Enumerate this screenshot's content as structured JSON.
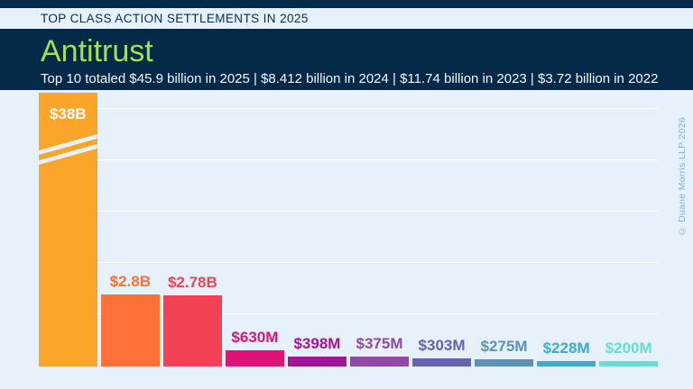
{
  "kicker": "TOP CLASS ACTION SETTLEMENTS IN 2025",
  "header": {
    "title": "Antitrust",
    "subtitle": "Top 10 totaled $45.9 billion in 2025 | $8.412 billion in 2024 | $11.74 billion in 2023 | $3.72 billion in 2022"
  },
  "watermark": "© Duane Morris LLP 2026",
  "colors": {
    "page_bg": "#E7F1FC",
    "navy_band": "#052948",
    "title_green": "#A3E14F",
    "kicker_text": "#0A2B4C",
    "subtitle_text": "#F2F7FD",
    "watermark_text": "#82B2DB",
    "gridline": "#FFFFFF"
  },
  "chart_data": {
    "type": "bar",
    "title": "Antitrust",
    "subtitle": "Top 10 totaled $45.9 billion in 2025 | $8.412 billion in 2024 | $11.74 billion in 2023 | $3.72 billion in 2022",
    "unit": "USD",
    "grid": true,
    "gridline_interval_billions": 2,
    "ylim_billions": [
      0,
      10.6
    ],
    "axis_break_on_first_bar": true,
    "bars": [
      {
        "label": "$38B",
        "value_billions": 38,
        "color": "#FBA62B",
        "broken_axis": true,
        "label_inside": true,
        "label_color": "#FFFFFF"
      },
      {
        "label": "$2.8B",
        "value_billions": 2.8,
        "color": "#FD7136"
      },
      {
        "label": "$2.78B",
        "value_billions": 2.78,
        "color": "#F24055"
      },
      {
        "label": "$630M",
        "value_billions": 0.63,
        "color": "#DE1378"
      },
      {
        "label": "$398M",
        "value_billions": 0.398,
        "color": "#A11597"
      },
      {
        "label": "$375M",
        "value_billions": 0.375,
        "color": "#8F4AA5"
      },
      {
        "label": "$303M",
        "value_billions": 0.303,
        "color": "#6563AE"
      },
      {
        "label": "$275M",
        "value_billions": 0.275,
        "color": "#5A92B8"
      },
      {
        "label": "$228M",
        "value_billions": 0.228,
        "color": "#41A9CD"
      },
      {
        "label": "$200M",
        "value_billions": 0.2,
        "color": "#69DCD5"
      }
    ]
  }
}
